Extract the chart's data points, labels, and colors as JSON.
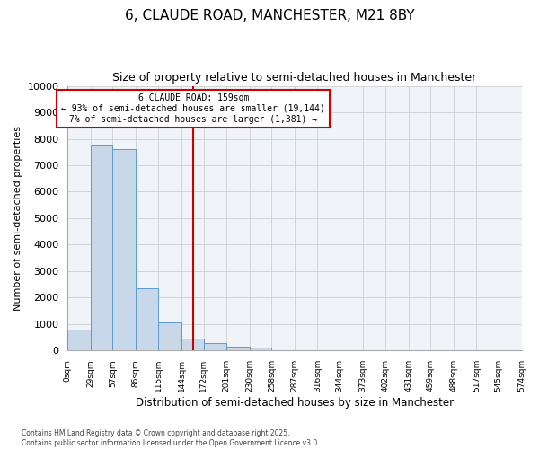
{
  "title1": "6, CLAUDE ROAD, MANCHESTER, M21 8BY",
  "title2": "Size of property relative to semi-detached houses in Manchester",
  "xlabel": "Distribution of semi-detached houses by size in Manchester",
  "ylabel": "Number of semi-detached properties",
  "footer1": "Contains HM Land Registry data © Crown copyright and database right 2025.",
  "footer2": "Contains public sector information licensed under the Open Government Licence v3.0.",
  "annotation_title": "6 CLAUDE ROAD: 159sqm",
  "annotation_line1": "← 93% of semi-detached houses are smaller (19,144)",
  "annotation_line2": "7% of semi-detached houses are larger (1,381) →",
  "property_size": 159,
  "bar_color": "#c8d8e8",
  "bar_edge_color": "#5b9bd5",
  "vline_color": "#cc0000",
  "grid_color": "#c8c8c8",
  "bg_color": "#f0f4f8",
  "bin_edges": [
    0,
    29,
    57,
    86,
    115,
    144,
    172,
    201,
    230,
    258,
    287,
    316,
    344,
    373,
    402,
    431,
    459,
    488,
    517,
    545,
    574
  ],
  "bin_labels": [
    "0sqm",
    "29sqm",
    "57sqm",
    "86sqm",
    "115sqm",
    "144sqm",
    "172sqm",
    "201sqm",
    "230sqm",
    "258sqm",
    "287sqm",
    "316sqm",
    "344sqm",
    "373sqm",
    "402sqm",
    "431sqm",
    "459sqm",
    "488sqm",
    "517sqm",
    "545sqm",
    "574sqm"
  ],
  "bar_heights": [
    800,
    7750,
    7600,
    2350,
    1050,
    440,
    280,
    150,
    100,
    0,
    0,
    0,
    0,
    0,
    0,
    0,
    0,
    0,
    0,
    0
  ],
  "ylim": [
    0,
    10000
  ],
  "yticks": [
    0,
    1000,
    2000,
    3000,
    4000,
    5000,
    6000,
    7000,
    8000,
    9000,
    10000
  ],
  "annotation_box_color": "#ffffff",
  "annotation_box_edge": "#cc0000"
}
